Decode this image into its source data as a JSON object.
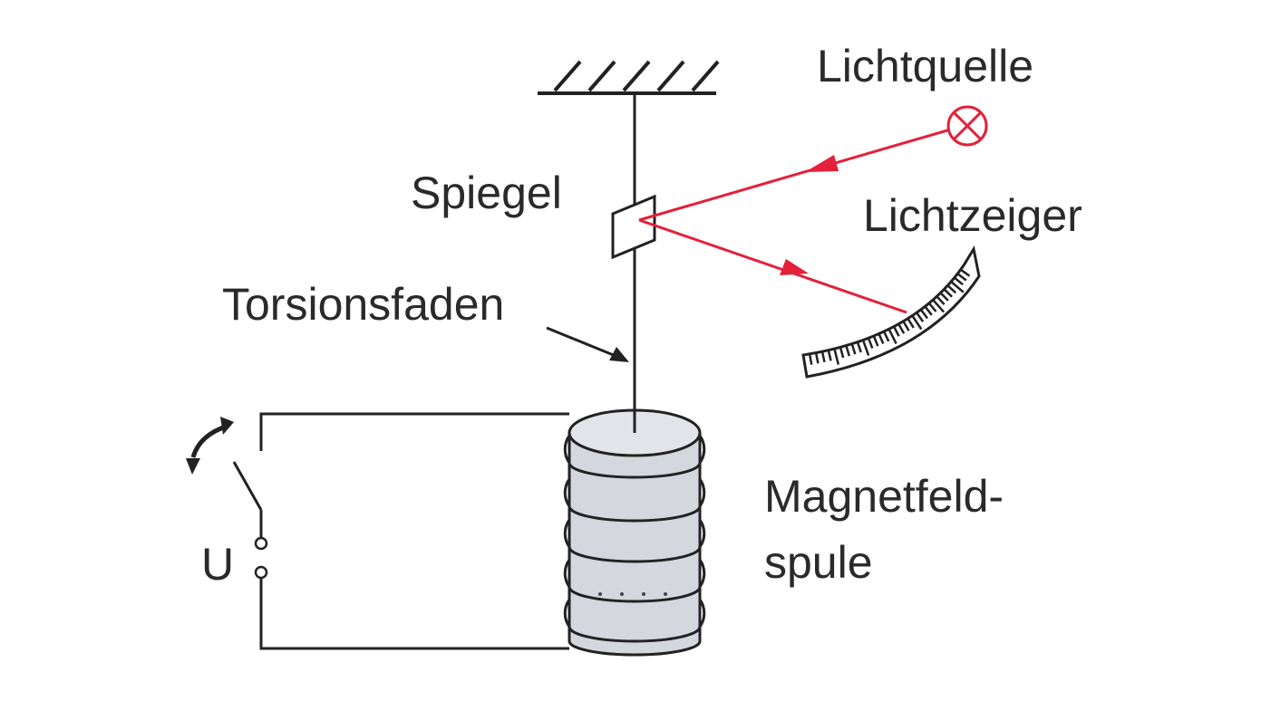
{
  "labels": {
    "light_source": "Lichtquelle",
    "mirror": "Spiegel",
    "light_pointer": "Lichtzeiger",
    "torsion_thread": "Torsionsfaden",
    "coil_line1": "Magnetfeld-",
    "coil_line2": "spule",
    "voltage": "U"
  },
  "colors": {
    "beam": "#e4203a",
    "ink": "#222222",
    "coil_fill": "#d4d7de",
    "text": "#2a2a2a"
  }
}
